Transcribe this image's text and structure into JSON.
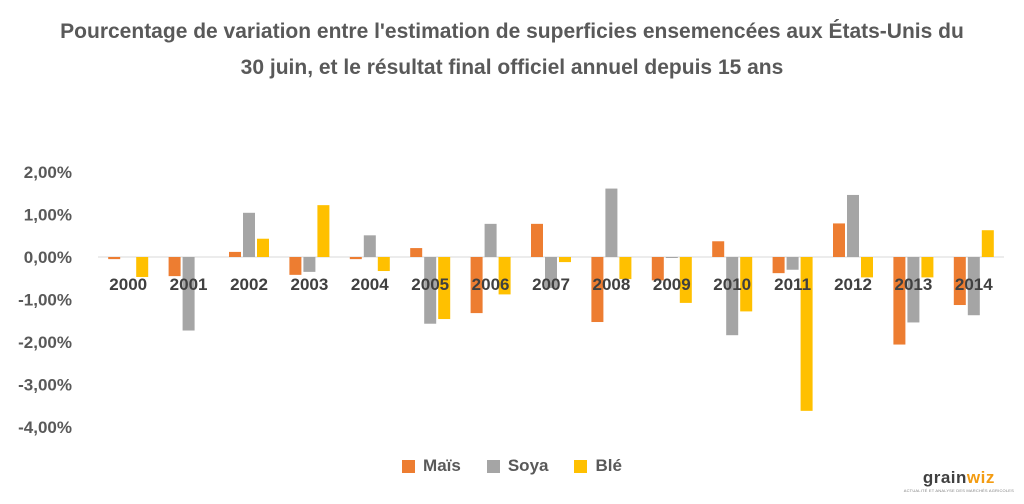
{
  "chart_data": {
    "type": "bar",
    "title": "Pourcentage de variation entre l'estimation de superficies ensemencées aux États-Unis du 30 juin, et le résultat final officiel annuel depuis 15 ans",
    "categories": [
      "2000",
      "2001",
      "2002",
      "2003",
      "2004",
      "2005",
      "2006",
      "2007",
      "2008",
      "2009",
      "2010",
      "2011",
      "2012",
      "2013",
      "2014"
    ],
    "series": [
      {
        "name": "Maïs",
        "color": "#ed7d31",
        "values": [
          -0.05,
          -0.45,
          0.12,
          -0.42,
          -0.05,
          0.21,
          -1.32,
          0.78,
          -1.53,
          -0.55,
          0.37,
          -0.38,
          0.79,
          -2.06,
          -1.13
        ]
      },
      {
        "name": "Soya",
        "color": "#a5a5a5",
        "values": [
          0.0,
          -1.73,
          1.04,
          -0.35,
          0.51,
          -1.57,
          0.78,
          -0.73,
          1.61,
          -0.02,
          -1.84,
          -0.3,
          1.46,
          -1.54,
          -1.37
        ]
      },
      {
        "name": "Blé",
        "color": "#ffc000",
        "values": [
          -0.47,
          0.0,
          0.43,
          1.22,
          -0.33,
          -1.46,
          -0.88,
          -0.12,
          -0.52,
          -1.08,
          -1.28,
          -3.62,
          -0.48,
          -0.48,
          0.63
        ]
      }
    ],
    "yticks": [
      "2,00%",
      "1,00%",
      "0,00%",
      "-1,00%",
      "-2,00%",
      "-3,00%",
      "-4,00%"
    ],
    "ylim": [
      -4,
      2
    ],
    "grid": false,
    "legend_position": "bottom"
  },
  "logo": {
    "text_main": "grain",
    "text_accent": "wiz",
    "tagline": "ACTUALITÉ ET ANALYSE DES MARCHÉS AGRICOLES"
  }
}
